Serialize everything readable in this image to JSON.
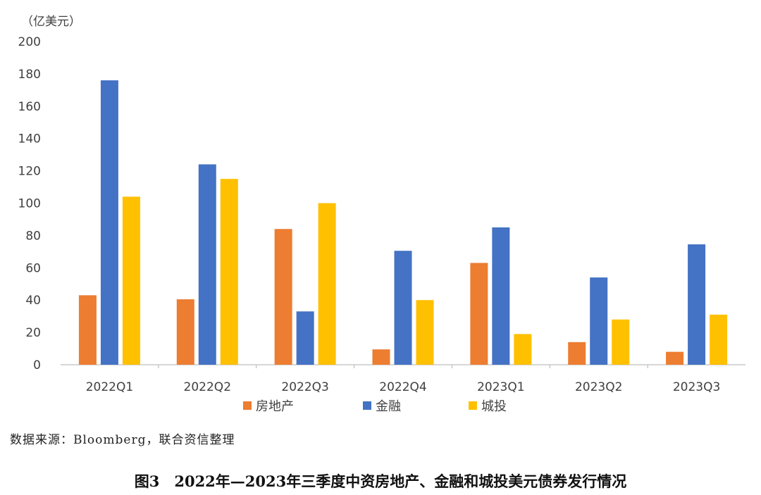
{
  "chart_data": {
    "type": "bar",
    "unit_label": "（亿美元）",
    "categories": [
      "2022Q1",
      "2022Q2",
      "2022Q3",
      "2022Q4",
      "2023Q1",
      "2023Q2",
      "2023Q3"
    ],
    "series": [
      {
        "name": "房地产",
        "color": "#ED7D31",
        "values": [
          43,
          40.5,
          84,
          9.5,
          63,
          14,
          8
        ]
      },
      {
        "name": "金融",
        "color": "#4472C4",
        "values": [
          176,
          124,
          33,
          70.5,
          85,
          54,
          74.5
        ]
      },
      {
        "name": "城投",
        "color": "#FFC000",
        "values": [
          104,
          115,
          100,
          40,
          19,
          28,
          31
        ]
      }
    ],
    "ylim": [
      0,
      200
    ],
    "yticks": [
      0,
      20,
      40,
      60,
      80,
      100,
      120,
      140,
      160,
      180,
      200
    ],
    "grid": false,
    "legend_position": "bottom"
  },
  "source_text": "数据来源：Bloomberg，联合资信整理",
  "caption": "图3　2022年—2023年三季度中资房地产、金融和城投美元债券发行情况"
}
